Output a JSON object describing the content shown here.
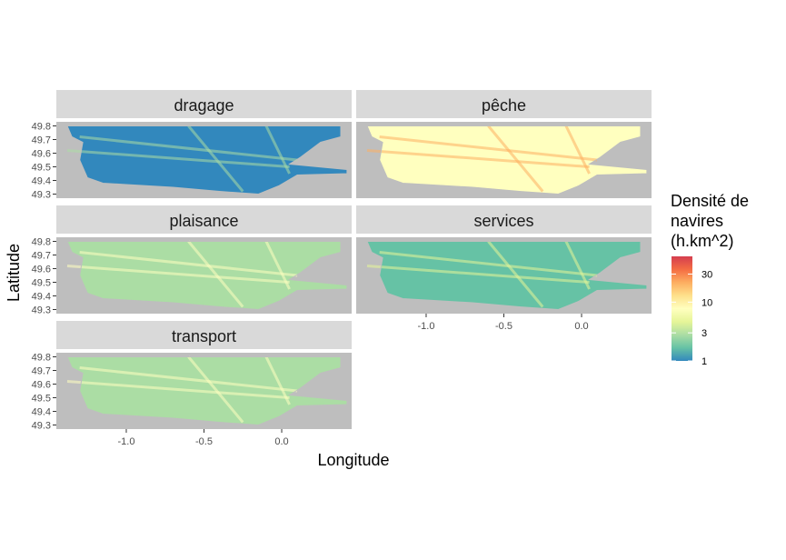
{
  "chart_data": {
    "type": "heatmap",
    "xlabel": "Longitude",
    "ylabel": "Latitude",
    "xlim": [
      -1.45,
      0.45
    ],
    "ylim": [
      49.27,
      49.83
    ],
    "x_ticks": [
      -1.0,
      -0.5,
      0.0
    ],
    "x_tick_labels": [
      "-1.0",
      "-0.5",
      "0.0"
    ],
    "y_ticks": [
      49.3,
      49.4,
      49.5,
      49.6,
      49.7,
      49.8
    ],
    "y_tick_labels": [
      "49.3",
      "49.4",
      "49.5",
      "49.6",
      "49.7",
      "49.8"
    ],
    "grid": false,
    "facets": [
      {
        "label": "dragage",
        "mean_level": 0.05
      },
      {
        "label": "pêche",
        "mean_level": 0.45
      },
      {
        "label": "plaisance",
        "mean_level": 0.3
      },
      {
        "label": "services",
        "mean_level": 0.12
      },
      {
        "label": "transport",
        "mean_level": 0.25
      }
    ],
    "legend": {
      "title": [
        "Densité de",
        " navires",
        "(h.km^2)"
      ],
      "placement": "right",
      "scale": "log",
      "range": [
        1,
        60
      ],
      "breaks": [
        1,
        3,
        10,
        30
      ],
      "break_labels": [
        "1",
        "3",
        "10",
        "30"
      ],
      "colors": [
        "#3288BD",
        "#66C2A5",
        "#ABDDA4",
        "#E6F598",
        "#FFFFBF",
        "#FEE08B",
        "#FDAE61",
        "#F46D43",
        "#D53E4F"
      ]
    },
    "land_color": "#BEBEBE",
    "strip_color": "#D9D9D9"
  }
}
